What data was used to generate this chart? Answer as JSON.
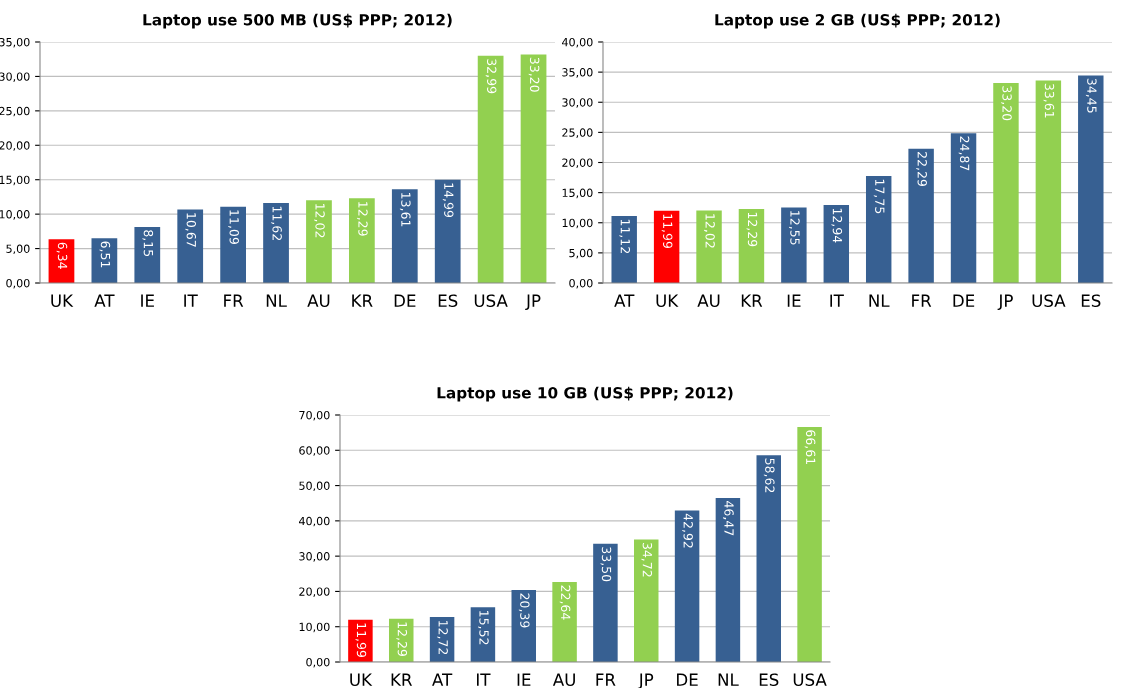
{
  "chart_data": [
    {
      "type": "bar",
      "title": "Laptop use 500 MB (US$ PPP; 2012)",
      "categories": [
        "UK",
        "AT",
        "IE",
        "IT",
        "FR",
        "NL",
        "AU",
        "KR",
        "DE",
        "ES",
        "USA",
        "JP"
      ],
      "values": [
        6.34,
        6.51,
        8.15,
        10.67,
        11.09,
        11.62,
        12.02,
        12.29,
        13.61,
        14.99,
        32.99,
        33.2
      ],
      "colors": [
        "#ff0000",
        "#376092",
        "#376092",
        "#376092",
        "#376092",
        "#376092",
        "#92d050",
        "#92d050",
        "#376092",
        "#376092",
        "#92d050",
        "#92d050"
      ],
      "value_labels": [
        "6,34",
        "6,51",
        "8,15",
        "10,67",
        "11,09",
        "11,62",
        "12,02",
        "12,29",
        "13,61",
        "14,99",
        "32,99",
        "33,20"
      ],
      "ylim": [
        0,
        35
      ],
      "yticks": [
        {
          "value": 0,
          "label": "0,00"
        },
        {
          "value": 5,
          "label": "5,00"
        },
        {
          "value": 10,
          "label": "10,00"
        },
        {
          "value": 15,
          "label": "15,00"
        },
        {
          "value": 20,
          "label": "20,00"
        },
        {
          "value": 25,
          "label": "25,00"
        },
        {
          "value": 30,
          "label": "30,00"
        },
        {
          "value": 35,
          "label": "35,00"
        }
      ],
      "grid": "y"
    },
    {
      "type": "bar",
      "title": "Laptop use 2 GB (US$ PPP; 2012)",
      "categories": [
        "AT",
        "UK",
        "AU",
        "KR",
        "IE",
        "IT",
        "NL",
        "FR",
        "DE",
        "JP",
        "USA",
        "ES"
      ],
      "values": [
        11.12,
        11.99,
        12.02,
        12.29,
        12.55,
        12.94,
        17.75,
        22.29,
        24.87,
        33.2,
        33.61,
        34.45
      ],
      "colors": [
        "#376092",
        "#ff0000",
        "#92d050",
        "#92d050",
        "#376092",
        "#376092",
        "#376092",
        "#376092",
        "#376092",
        "#92d050",
        "#92d050",
        "#376092"
      ],
      "value_labels": [
        "11,12",
        "11,99",
        "12,02",
        "12,29",
        "12,55",
        "12,94",
        "17,75",
        "22,29",
        "24,87",
        "33,20",
        "33,61",
        "34,45"
      ],
      "ylim": [
        0,
        40
      ],
      "yticks": [
        {
          "value": 0,
          "label": "0,00"
        },
        {
          "value": 5,
          "label": "5,00"
        },
        {
          "value": 10,
          "label": "10,00"
        },
        {
          "value": 15,
          "label": "15,00"
        },
        {
          "value": 20,
          "label": "20,00"
        },
        {
          "value": 25,
          "label": "25,00"
        },
        {
          "value": 30,
          "label": "30,00"
        },
        {
          "value": 35,
          "label": "35,00"
        },
        {
          "value": 40,
          "label": "40,00"
        }
      ],
      "grid": "y"
    },
    {
      "type": "bar",
      "title": "Laptop use 10 GB (US$ PPP; 2012)",
      "categories": [
        "UK",
        "KR",
        "AT",
        "IT",
        "IE",
        "AU",
        "FR",
        "JP",
        "DE",
        "NL",
        "ES",
        "USA"
      ],
      "values": [
        11.99,
        12.29,
        12.72,
        15.52,
        20.39,
        22.64,
        33.5,
        34.72,
        42.92,
        46.47,
        58.62,
        66.61
      ],
      "colors": [
        "#ff0000",
        "#92d050",
        "#376092",
        "#376092",
        "#376092",
        "#92d050",
        "#376092",
        "#92d050",
        "#376092",
        "#376092",
        "#376092",
        "#92d050"
      ],
      "value_labels": [
        "11,99",
        "12,29",
        "12,72",
        "15,52",
        "20,39",
        "22,64",
        "33,50",
        "34,72",
        "42,92",
        "46,47",
        "58,62",
        "66,61"
      ],
      "ylim": [
        0,
        70
      ],
      "yticks": [
        {
          "value": 0,
          "label": "0,00"
        },
        {
          "value": 10,
          "label": "10,00"
        },
        {
          "value": 20,
          "label": "20,00"
        },
        {
          "value": 30,
          "label": "30,00"
        },
        {
          "value": 40,
          "label": "40,00"
        },
        {
          "value": 50,
          "label": "50,00"
        },
        {
          "value": 60,
          "label": "60,00"
        },
        {
          "value": 70,
          "label": "70,00"
        }
      ],
      "grid": "y"
    }
  ]
}
